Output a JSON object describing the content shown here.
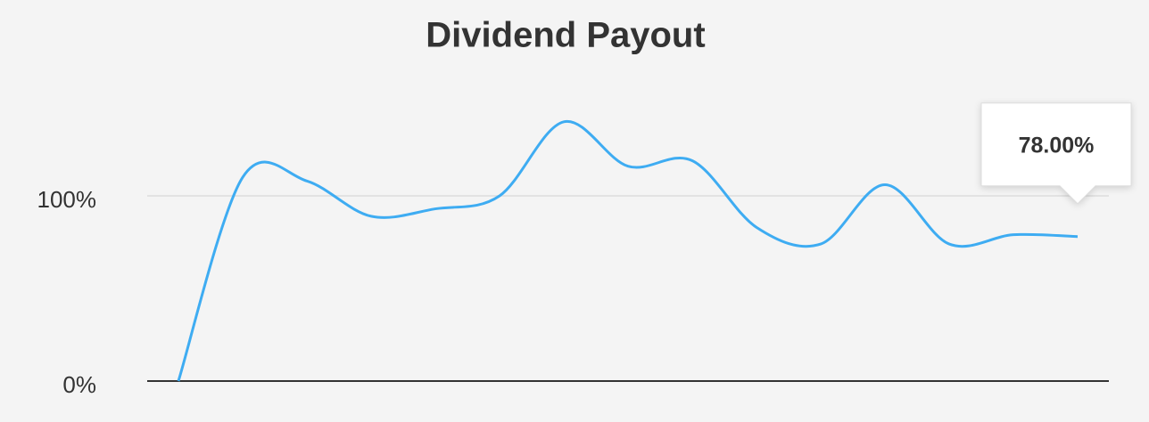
{
  "chart_data": {
    "type": "line",
    "title": "Dividend Payout",
    "categories": [
      null,
      null,
      null,
      null,
      null,
      null,
      null,
      null,
      null,
      null,
      null,
      null,
      null,
      null,
      null
    ],
    "series": [
      {
        "color": "#3eacf2",
        "values": [
          0,
          110,
          108,
          89,
          93,
          100,
          140,
          116,
          119,
          83,
          74,
          106,
          74,
          79,
          78
        ],
        "value_labels": [
          null,
          null,
          null,
          null,
          null,
          null,
          null,
          null,
          null,
          null,
          null,
          null,
          null,
          null,
          "78.00%"
        ]
      }
    ],
    "ylim": [
      0,
      160
    ],
    "yticks": [
      {
        "value": 0,
        "label": "0%"
      },
      {
        "value": 100,
        "label": "100%"
      }
    ],
    "grid": true
  }
}
